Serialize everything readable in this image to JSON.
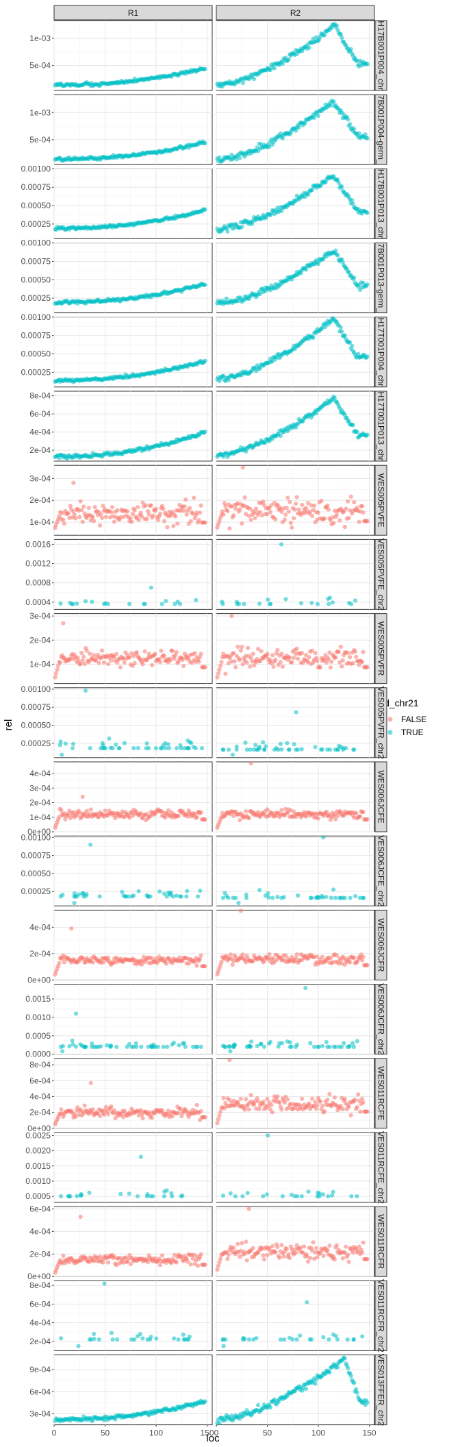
{
  "chart_data": {
    "type": "scatter",
    "xlabel": "loc",
    "ylabel": "rel",
    "xlim": [
      0,
      155
    ],
    "x_ticks": [
      "0",
      "50",
      "100",
      "150"
    ],
    "x_tick_values": [
      0,
      50,
      100,
      150
    ],
    "columns": [
      "R1",
      "R2"
    ],
    "legend": {
      "title": "id_chr21",
      "position": "right",
      "entries": [
        {
          "label": "FALSE",
          "color": "#F8766D"
        },
        {
          "label": "TRUE",
          "color": "#00BFC4"
        }
      ]
    },
    "grid": true,
    "rows": [
      {
        "label": "H17B001P004_chr",
        "color": "#00BFC4",
        "pattern": "trend",
        "yrange": [
          4e-05,
          0.00133
        ],
        "ticks": [
          0.0005,
          0.001
        ],
        "tick_labels": [
          "5e-04",
          "1e-03"
        ],
        "R1": {
          "start": 0.00014,
          "end": 0.00045,
          "spread": 3e-05
        },
        "R2": {
          "start": 0.00013,
          "peak": 0.00124,
          "peak_loc": 115,
          "end": 0.00055,
          "spread": 6e-05
        }
      },
      {
        "label": "7B001P004-germ_",
        "color": "#00BFC4",
        "pattern": "trend",
        "yrange": [
          4e-05,
          0.00133
        ],
        "ticks": [
          0.0005,
          0.001
        ],
        "tick_labels": [
          "5e-04",
          "1e-03"
        ],
        "R1": {
          "start": 0.00014,
          "end": 0.00045,
          "spread": 3e-05
        },
        "R2": {
          "start": 0.00013,
          "peak": 0.00122,
          "peak_loc": 115,
          "end": 0.00055,
          "spread": 6e-05
        }
      },
      {
        "label": "H17B001P013_chr",
        "color": "#00BFC4",
        "pattern": "trend",
        "yrange": [
          5e-05,
          0.001
        ],
        "ticks": [
          0.00025,
          0.0005,
          0.00075,
          0.001
        ],
        "tick_labels": [
          "0.00025",
          "0.00050",
          "0.00075",
          "0.00100"
        ],
        "R1": {
          "start": 0.00019,
          "end": 0.00044,
          "spread": 2e-05
        },
        "R2": {
          "start": 0.00018,
          "peak": 0.00092,
          "peak_loc": 115,
          "end": 0.00042,
          "spread": 4e-05
        }
      },
      {
        "label": "7B001P013-germ_",
        "color": "#00BFC4",
        "pattern": "trend",
        "yrange": [
          5e-05,
          0.001
        ],
        "ticks": [
          0.00025,
          0.0005,
          0.00075,
          0.001
        ],
        "tick_labels": [
          "0.00025",
          "0.00050",
          "0.00075",
          "0.00100"
        ],
        "R1": {
          "start": 0.00019,
          "end": 0.00044,
          "spread": 2e-05
        },
        "R2": {
          "start": 0.00018,
          "peak": 0.0009,
          "peak_loc": 115,
          "end": 0.00042,
          "spread": 4e-05
        }
      },
      {
        "label": "H17T001P004_chr",
        "color": "#00BFC4",
        "pattern": "trend",
        "yrange": [
          5e-05,
          0.001
        ],
        "ticks": [
          0.00025,
          0.0005,
          0.00075,
          0.001
        ],
        "tick_labels": [
          "0.00025",
          "0.00050",
          "0.00075",
          "0.00100"
        ],
        "R1": {
          "start": 0.00014,
          "end": 0.0004,
          "spread": 2e-05
        },
        "R2": {
          "start": 0.00016,
          "peak": 0.00098,
          "peak_loc": 115,
          "end": 0.00045,
          "spread": 4e-05
        }
      },
      {
        "label": "H17T001P013_chr",
        "color": "#00BFC4",
        "pattern": "trend",
        "yrange": [
          8e-05,
          0.00085
        ],
        "ticks": [
          0.0002,
          0.0004,
          0.0006,
          0.0008
        ],
        "tick_labels": [
          "2e-04",
          "4e-04",
          "6e-04",
          "8e-04"
        ],
        "R1": {
          "start": 0.00013,
          "end": 0.0004,
          "spread": 2e-05
        },
        "R2": {
          "start": 0.00014,
          "peak": 0.00078,
          "peak_loc": 115,
          "end": 0.00036,
          "spread": 3e-05
        }
      },
      {
        "label": "WES005PVFE",
        "color": "#F8766D",
        "pattern": "noise",
        "yrange": [
          4e-05,
          0.00036
        ],
        "ticks": [
          0.0001,
          0.0002,
          0.0003
        ],
        "tick_labels": [
          "1e-04",
          "2e-04",
          "3e-04"
        ],
        "R1": {
          "level": 0.00014,
          "spread": 5e-05,
          "max": 0.00028,
          "min": 6e-05
        },
        "R2": {
          "level": 0.00015,
          "spread": 6e-05,
          "max": 0.00035,
          "min": 6e-05
        }
      },
      {
        "label": "VES005PVFE_chr2",
        "color": "#00BFC4",
        "pattern": "sparse",
        "yrange": [
          0.00025,
          0.0017
        ],
        "ticks": [
          0.0004,
          0.0008,
          0.0012,
          0.0016
        ],
        "tick_labels": [
          "0.0004",
          "0.0008",
          "0.0012",
          "0.0016"
        ],
        "R1": {
          "level": 0.00036,
          "spread": 0.0001,
          "max": 0.0007,
          "min": 0.00036,
          "n": 18
        },
        "R2": {
          "level": 0.00036,
          "spread": 0.00012,
          "max": 0.0016,
          "min": 0.00036,
          "n": 20
        }
      },
      {
        "label": "WES005PVFR",
        "color": "#F8766D",
        "pattern": "noise",
        "yrange": [
          2e-05,
          0.00031
        ],
        "ticks": [
          0.0001,
          0.0002,
          0.0003
        ],
        "tick_labels": [
          "1e-04",
          "2e-04",
          "3e-04"
        ],
        "R1": {
          "level": 0.000125,
          "spread": 3e-05,
          "max": 0.00027,
          "min": 3e-05
        },
        "R2": {
          "level": 0.000125,
          "spread": 4e-05,
          "max": 0.0003,
          "min": 3e-05
        }
      },
      {
        "label": "VES005PVFR_chr2",
        "color": "#00BFC4",
        "pattern": "sparse",
        "yrange": [
          5e-05,
          0.00102
        ],
        "ticks": [
          0.00025,
          0.0005,
          0.00075,
          0.001
        ],
        "tick_labels": [
          "0.00025",
          "0.00050",
          "0.00075",
          "0.00100"
        ],
        "R1": {
          "level": 0.00018,
          "spread": 0.00012,
          "max": 0.00098,
          "min": 9e-05,
          "n": 45
        },
        "R2": {
          "level": 0.00016,
          "spread": 0.00012,
          "max": 0.00068,
          "min": 9e-05,
          "n": 45
        }
      },
      {
        "label": "WES006JCFE",
        "color": "#F8766D",
        "pattern": "noise",
        "yrange": [
          0.0,
          0.00048
        ],
        "ticks": [
          0.0,
          0.0001,
          0.0002,
          0.0003,
          0.0004
        ],
        "tick_labels": [
          "0e+00",
          "1e-04",
          "2e-04",
          "3e-04",
          "4e-04"
        ],
        "R1": {
          "level": 0.00012,
          "spread": 3e-05,
          "max": 0.00024,
          "min": 1e-05
        },
        "R2": {
          "level": 0.00012,
          "spread": 3e-05,
          "max": 0.00047,
          "min": 1e-05
        }
      },
      {
        "label": "VES006JCFE_chr2",
        "color": "#00BFC4",
        "pattern": "sparse",
        "yrange": [
          5e-05,
          0.00102
        ],
        "ticks": [
          0.00025,
          0.0005,
          0.00075,
          0.001
        ],
        "tick_labels": [
          "0.00025",
          "0.00050",
          "0.00075",
          "0.00100"
        ],
        "R1": {
          "level": 0.00018,
          "spread": 0.0001,
          "max": 0.0009,
          "min": 9e-05,
          "n": 40
        },
        "R2": {
          "level": 0.00016,
          "spread": 0.0001,
          "max": 0.001,
          "min": 9e-05,
          "n": 38
        }
      },
      {
        "label": "WES006JCFR",
        "color": "#F8766D",
        "pattern": "noise",
        "yrange": [
          0.0,
          0.00053
        ],
        "ticks": [
          0.0,
          0.0002,
          0.0004
        ],
        "tick_labels": [
          "0e+00",
          "2e-04",
          "4e-04"
        ],
        "R1": {
          "level": 0.00015,
          "spread": 3e-05,
          "max": 0.00039,
          "min": 2e-05
        },
        "R2": {
          "level": 0.00016,
          "spread": 4e-05,
          "max": 0.00053,
          "min": 2e-05
        }
      },
      {
        "label": "VES006JCFR_chr2",
        "color": "#00BFC4",
        "pattern": "sparse",
        "yrange": [
          0.0,
          0.0019
        ],
        "ticks": [
          0.0,
          0.0005,
          0.001,
          0.0015
        ],
        "tick_labels": [
          "0.0000",
          "0.0005",
          "0.0010",
          "0.0015"
        ],
        "R1": {
          "level": 0.0002,
          "spread": 0.00015,
          "max": 0.0011,
          "min": 8e-05,
          "n": 50
        },
        "R2": {
          "level": 0.0002,
          "spread": 0.00015,
          "max": 0.0018,
          "min": 8e-05,
          "n": 50
        }
      },
      {
        "label": "WES011RCFE",
        "color": "#F8766D",
        "pattern": "noise",
        "yrange": [
          0.0,
          0.00088
        ],
        "ticks": [
          0.0,
          0.0002,
          0.0004,
          0.0006,
          0.0008
        ],
        "tick_labels": [
          "0e+00",
          "2e-04",
          "4e-04",
          "6e-04",
          "8e-04"
        ],
        "R1": {
          "level": 0.0002,
          "spread": 7e-05,
          "max": 0.00057,
          "min": 2e-05
        },
        "R2": {
          "level": 0.0003,
          "spread": 0.0001,
          "max": 0.00086,
          "min": 2e-05
        }
      },
      {
        "label": "VES011RCFE_chr2",
        "color": "#00BFC4",
        "pattern": "sparse",
        "yrange": [
          0.0003,
          0.0026
        ],
        "ticks": [
          0.0005,
          0.001,
          0.0015,
          0.002,
          0.0025
        ],
        "tick_labels": [
          "0.0005",
          "0.0010",
          "0.0015",
          "0.0020",
          "0.0025"
        ],
        "R1": {
          "level": 0.0005,
          "spread": 0.00015,
          "max": 0.0018,
          "min": 0.0005,
          "n": 22
        },
        "R2": {
          "level": 0.0005,
          "spread": 0.00015,
          "max": 0.0025,
          "min": 0.0005,
          "n": 22
        }
      },
      {
        "label": "WES011RCFR",
        "color": "#F8766D",
        "pattern": "noise",
        "yrange": [
          0.0,
          0.00062
        ],
        "ticks": [
          0.0,
          0.0002,
          0.0004,
          0.0006
        ],
        "tick_labels": [
          "0e+00",
          "2e-04",
          "4e-04",
          "6e-04"
        ],
        "R1": {
          "level": 0.00015,
          "spread": 5e-05,
          "max": 0.00053,
          "min": 1e-05
        },
        "R2": {
          "level": 0.00022,
          "spread": 8e-05,
          "max": 0.0006,
          "min": 3e-05
        }
      },
      {
        "label": "VES011RCFR_chr2",
        "color": "#00BFC4",
        "pattern": "sparse",
        "yrange": [
          0.0001,
          0.00085
        ],
        "ticks": [
          0.0002,
          0.0004,
          0.0006,
          0.0008
        ],
        "tick_labels": [
          "2e-04",
          "4e-04",
          "6e-04",
          "8e-04"
        ],
        "R1": {
          "level": 0.00022,
          "spread": 8e-05,
          "max": 0.00082,
          "min": 0.00015,
          "n": 26
        },
        "R2": {
          "level": 0.00022,
          "spread": 8e-05,
          "max": 0.00062,
          "min": 0.00015,
          "n": 26
        }
      },
      {
        "label": "VES013FFER_chr2",
        "color": "#00BFC4",
        "pattern": "trend",
        "yrange": [
          0.00015,
          0.0011
        ],
        "ticks": [
          0.0003,
          0.0006,
          0.0009
        ],
        "tick_labels": [
          "3e-04",
          "6e-04",
          "9e-04"
        ],
        "R1": {
          "start": 0.00022,
          "end": 0.00047,
          "spread": 2.5e-05
        },
        "R2": {
          "start": 0.00022,
          "peak": 0.00105,
          "peak_loc": 125,
          "end": 0.00045,
          "spread": 5e-05
        }
      }
    ]
  }
}
